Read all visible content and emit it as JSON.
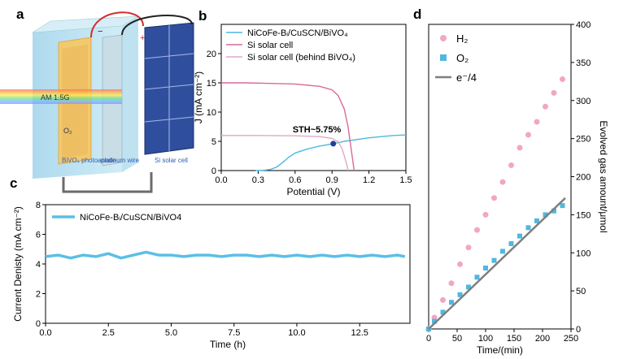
{
  "panels": {
    "a": "a",
    "b": "b",
    "c": "c",
    "d": "d"
  },
  "illustration": {
    "beam_label": "AM 1.5G",
    "photoanode_label": "BiVO₄ photoanode",
    "wire_label": "platinum wire",
    "cell_label": "Si solar cell",
    "o2_label": "O₂",
    "minus": "−",
    "plus": "+"
  },
  "chart_data": [
    {
      "id": "b",
      "type": "line",
      "xlabel": "Potential (V)",
      "ylabel": "J (mA cm⁻²)",
      "xlim": [
        0,
        1.5
      ],
      "ylim": [
        0,
        25
      ],
      "xticks": [
        "0.0",
        "0.3",
        "0.6",
        "0.9",
        "1.2",
        "1.5"
      ],
      "yticks": [
        "0",
        "5",
        "10",
        "15",
        "20"
      ],
      "annotation": "STH~5.75%",
      "operating_point": {
        "x": 0.91,
        "y": 4.6
      },
      "legend_position": "top-left",
      "series": [
        {
          "name": "NiCoFe-Bᵢ/CuSCN/BiVO₄",
          "color": "#4db8e0",
          "x": [
            0.28,
            0.35,
            0.4,
            0.45,
            0.5,
            0.55,
            0.6,
            0.7,
            0.8,
            0.91,
            1.0,
            1.1,
            1.2,
            1.3,
            1.4,
            1.5
          ],
          "y": [
            0.0,
            0.05,
            0.2,
            0.6,
            1.4,
            2.3,
            3.0,
            3.7,
            4.2,
            4.6,
            5.0,
            5.3,
            5.6,
            5.8,
            6.0,
            6.1
          ]
        },
        {
          "name": "Si solar cell",
          "color": "#d96a9a",
          "x": [
            0.0,
            0.2,
            0.4,
            0.6,
            0.8,
            0.9,
            0.95,
            1.0,
            1.03,
            1.05,
            1.07,
            1.08
          ],
          "y": [
            15.0,
            15.0,
            14.9,
            14.8,
            14.4,
            13.8,
            12.8,
            10.5,
            7.5,
            4.5,
            1.5,
            0.0
          ]
        },
        {
          "name": "Si solar cell (behind BiVO₄)",
          "color": "#e0a8c8",
          "x": [
            0.0,
            0.3,
            0.6,
            0.8,
            0.9,
            0.95,
            0.98,
            1.0,
            1.02,
            1.03
          ],
          "y": [
            6.0,
            6.0,
            5.95,
            5.8,
            5.5,
            4.9,
            3.8,
            2.5,
            1.0,
            0.0
          ]
        }
      ]
    },
    {
      "id": "c",
      "type": "line",
      "xlabel": "Time (h)",
      "ylabel": "Current Denisty (mA cm⁻²)",
      "xlim": [
        0,
        14.5
      ],
      "ylim": [
        0,
        8
      ],
      "xticks": [
        "0.0",
        "2.5",
        "5.0",
        "7.5",
        "10.0",
        "12.5"
      ],
      "yticks": [
        "0",
        "2",
        "4",
        "6",
        "8"
      ],
      "legend_position": "top-left",
      "series": [
        {
          "name": "NiCoFe-Bᵢ/CuSCN/BiVO4",
          "color": "#5bbfe6",
          "x": [
            0,
            0.5,
            1.0,
            1.5,
            2.0,
            2.5,
            3.0,
            3.5,
            4.0,
            4.5,
            5.0,
            5.5,
            6.0,
            6.5,
            7.0,
            7.5,
            8.0,
            8.5,
            9.0,
            9.5,
            10.0,
            10.5,
            11.0,
            11.5,
            12.0,
            12.5,
            13.0,
            13.5,
            14.0,
            14.3
          ],
          "y": [
            4.5,
            4.6,
            4.4,
            4.6,
            4.5,
            4.7,
            4.4,
            4.6,
            4.8,
            4.6,
            4.6,
            4.5,
            4.6,
            4.6,
            4.5,
            4.6,
            4.6,
            4.5,
            4.6,
            4.5,
            4.6,
            4.5,
            4.6,
            4.5,
            4.6,
            4.5,
            4.6,
            4.5,
            4.6,
            4.5
          ]
        }
      ]
    },
    {
      "id": "d",
      "type": "scatter",
      "xlabel": "Time/(min)",
      "ylabel": "Evolved gas amount/μmol",
      "xlim": [
        0,
        250
      ],
      "ylim": [
        0,
        400
      ],
      "xticks": [
        "0",
        "50",
        "100",
        "150",
        "200",
        "250"
      ],
      "yticks": [
        "0",
        "50",
        "100",
        "150",
        "200",
        "250",
        "300",
        "350",
        "400"
      ],
      "legend_position": "top-left",
      "series": [
        {
          "name": "H₂",
          "color": "#f2a6c4",
          "marker": "circle",
          "x": [
            0,
            10,
            25,
            40,
            55,
            70,
            85,
            100,
            115,
            130,
            145,
            160,
            175,
            190,
            205,
            220,
            235
          ],
          "y": [
            0,
            15,
            38,
            60,
            85,
            107,
            130,
            150,
            172,
            193,
            215,
            238,
            255,
            272,
            292,
            310,
            328
          ]
        },
        {
          "name": "O₂",
          "color": "#4fb8e0",
          "marker": "square",
          "x": [
            0,
            10,
            25,
            40,
            55,
            70,
            85,
            100,
            115,
            130,
            145,
            160,
            175,
            190,
            205,
            220,
            235
          ],
          "y": [
            0,
            10,
            22,
            35,
            45,
            55,
            68,
            80,
            90,
            102,
            112,
            122,
            133,
            142,
            150,
            155,
            162
          ]
        },
        {
          "name": "e⁻/4",
          "color": "#7f7f7f",
          "marker": "line",
          "x": [
            0,
            240
          ],
          "y": [
            0,
            172
          ]
        }
      ]
    }
  ]
}
